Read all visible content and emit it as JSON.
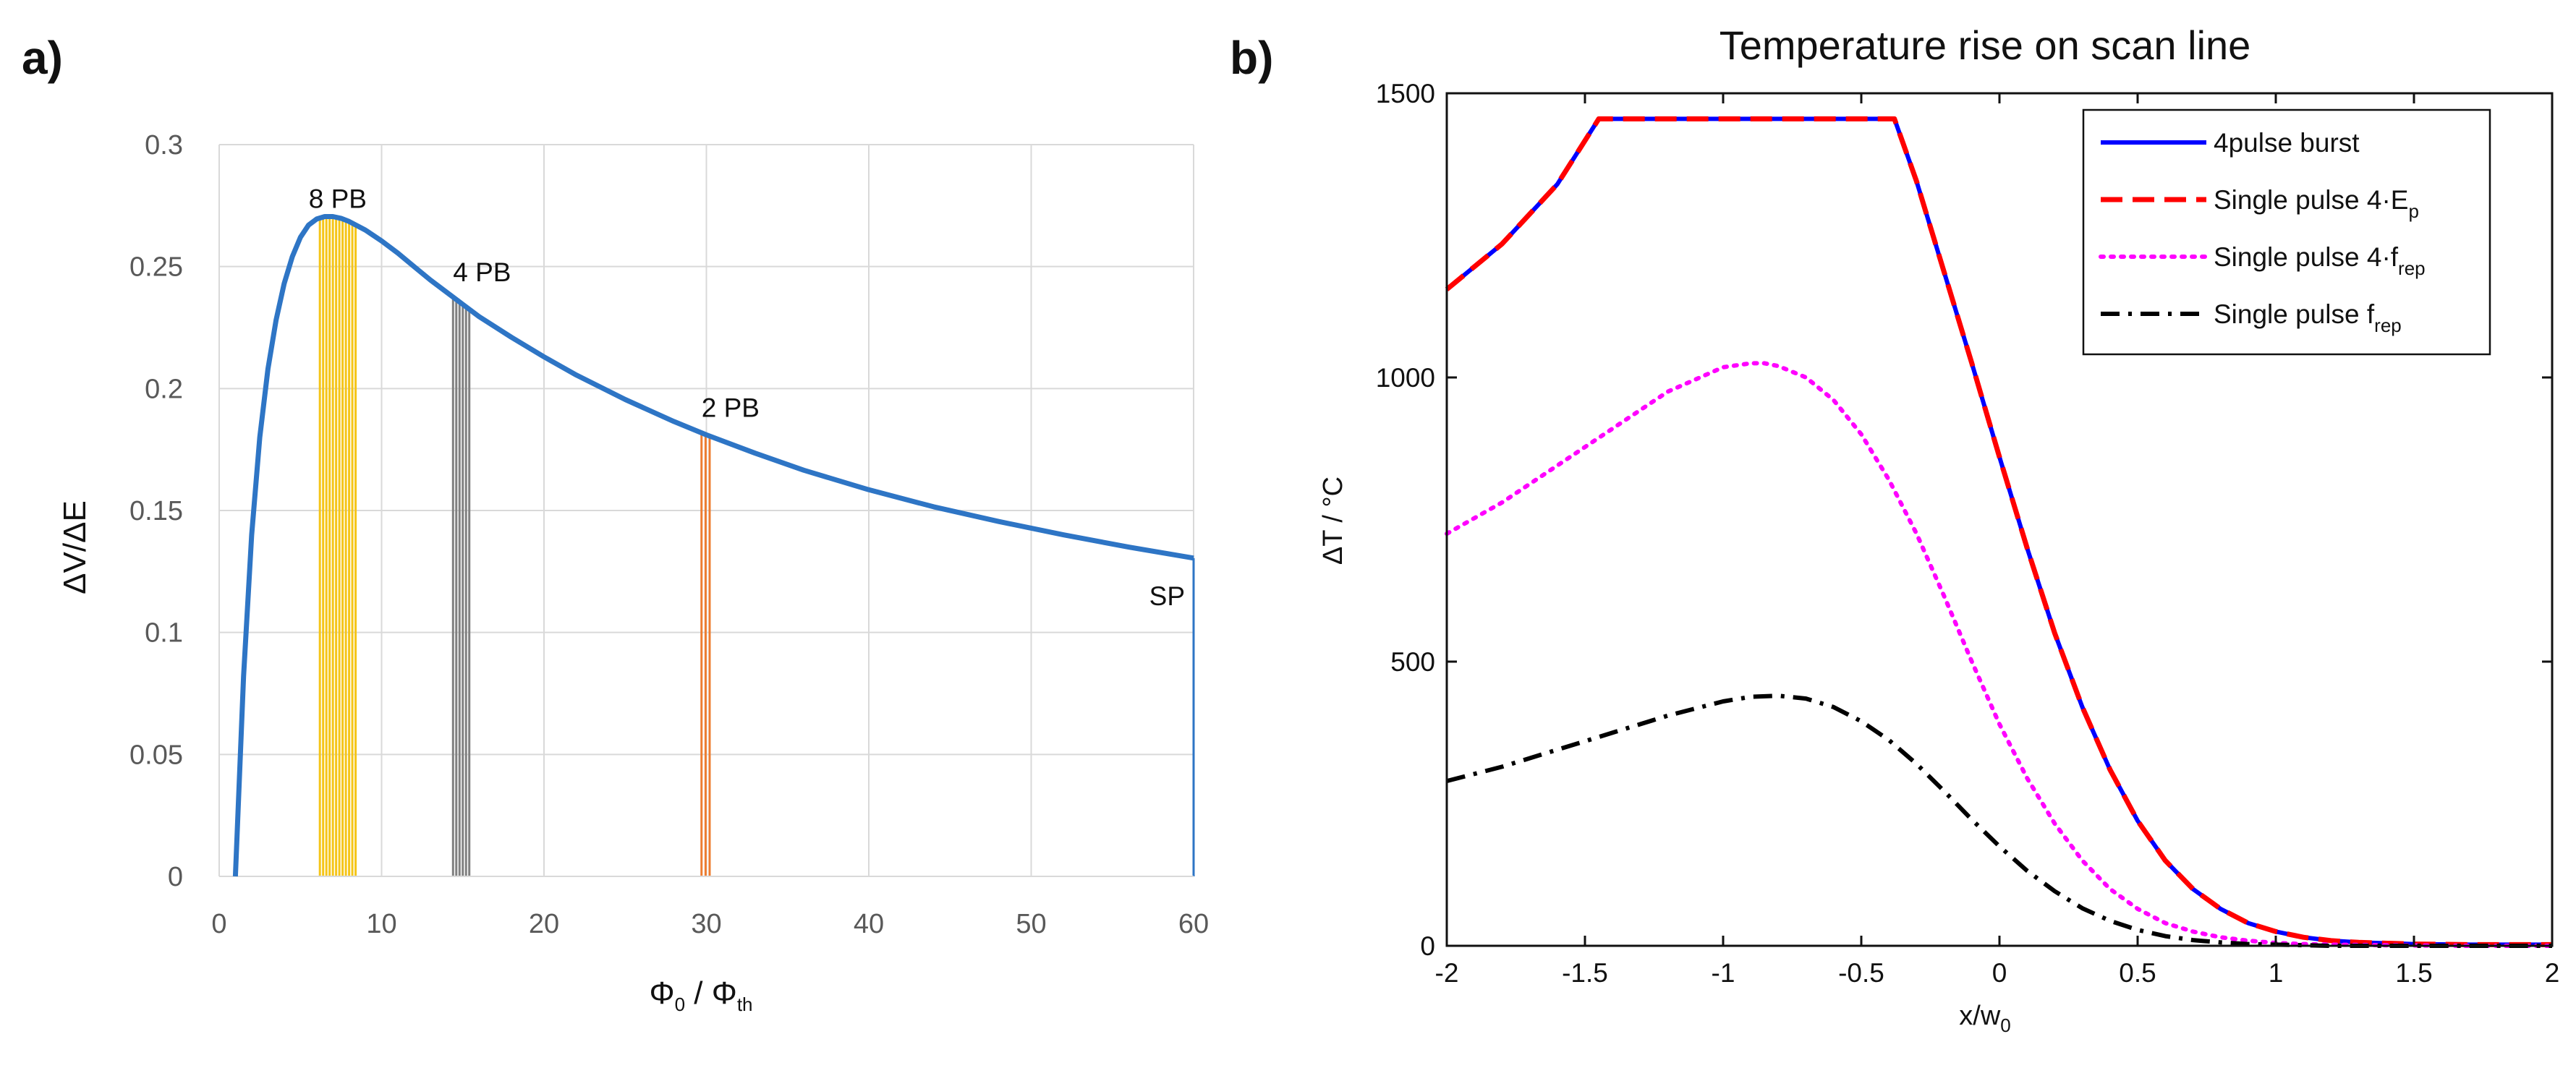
{
  "panel_a_letter": "a)",
  "panel_b_letter": "b)",
  "chart_data": [
    {
      "type": "line",
      "panel": "a",
      "title": "",
      "ylabel": "ΔV/ΔE",
      "xlabel_main": "Φ",
      "xlabel_sub1": "0",
      "xlabel_sep": " / Φ",
      "xlabel_sub2": "th",
      "xlim": [
        0,
        60
      ],
      "ylim": [
        0,
        0.3
      ],
      "xticks": [
        0,
        10,
        20,
        30,
        40,
        50,
        60
      ],
      "xtick_labels": [
        "0",
        "10",
        "20",
        "30",
        "40",
        "50",
        "60"
      ],
      "yticks": [
        0,
        0.05,
        0.1,
        0.15,
        0.2,
        0.25,
        0.3
      ],
      "ytick_labels": [
        "0",
        "0.05",
        "0.1",
        "0.15",
        "0.2",
        "0.25",
        "0.3"
      ],
      "grid": true,
      "curve_color": "#2E75C5",
      "series": [
        {
          "name": "ΔV/ΔE",
          "x": [
            1,
            1.5,
            2,
            2.5,
            3,
            3.5,
            4,
            4.5,
            5,
            5.5,
            6,
            6.5,
            7,
            7.5,
            8,
            9,
            10,
            11,
            12,
            13,
            14,
            15,
            16,
            18,
            20,
            22,
            25,
            28,
            30,
            33,
            36,
            40,
            44,
            48,
            52,
            56,
            60
          ],
          "y": [
            0,
            0.082,
            0.14,
            0.18,
            0.208,
            0.228,
            0.243,
            0.254,
            0.262,
            0.267,
            0.2695,
            0.2705,
            0.2705,
            0.2698,
            0.2685,
            0.265,
            0.2605,
            0.2555,
            0.25,
            0.2445,
            0.2395,
            0.2345,
            0.2295,
            0.221,
            0.213,
            0.2055,
            0.1955,
            0.1865,
            0.181,
            0.1735,
            0.1665,
            0.1585,
            0.1515,
            0.1455,
            0.14,
            0.135,
            0.1305
          ]
        }
      ],
      "bands": [
        {
          "label": "8 PB",
          "x_start": 6.2,
          "x_end": 8.4,
          "lines": 12,
          "color": "#F5C518"
        },
        {
          "label": "4 PB",
          "x_start": 14.4,
          "x_end": 15.4,
          "lines": 6,
          "color": "#808080"
        },
        {
          "label": "2 PB",
          "x_start": 29.7,
          "x_end": 30.2,
          "lines": 3,
          "color": "#ED7D31"
        },
        {
          "label": "SP",
          "x_start": 60,
          "x_end": 60,
          "lines": 1,
          "color": "#2E75C5"
        }
      ]
    },
    {
      "type": "line",
      "panel": "b",
      "title": "Temperature rise on scan line",
      "ylabel": "ΔT / °C",
      "xlabel_main": "x/w",
      "xlabel_sub": "0",
      "xlim": [
        -2,
        2
      ],
      "ylim": [
        0,
        1500
      ],
      "xticks": [
        -2,
        -1.5,
        -1,
        -0.5,
        0,
        0.5,
        1,
        1.5,
        2
      ],
      "xtick_labels": [
        "-2",
        "-1.5",
        "-1",
        "-0.5",
        "0",
        "0.5",
        "1",
        "1.5",
        "2"
      ],
      "yticks": [
        0,
        500,
        1000,
        1500
      ],
      "ytick_labels": [
        "0",
        "500",
        "1000",
        "1500"
      ],
      "grid": false,
      "legend_position": "top-right",
      "series": [
        {
          "name": "4pulse burst",
          "legend_main": "4pulse burst",
          "legend_sub": "",
          "color": "#0000FF",
          "style": "solid",
          "x": [
            -2,
            -1.8,
            -1.6,
            -1.45,
            -0.38,
            -0.3,
            -0.2,
            -0.1,
            0,
            0.1,
            0.2,
            0.3,
            0.4,
            0.5,
            0.6,
            0.7,
            0.8,
            0.9,
            1.0,
            1.1,
            1.2,
            1.3,
            1.5,
            1.7,
            2
          ],
          "y": [
            1155,
            1235,
            1340,
            1455,
            1455,
            1345,
            1185,
            1025,
            860,
            700,
            550,
            420,
            310,
            220,
            150,
            100,
            65,
            40,
            25,
            15,
            9,
            6,
            3,
            2,
            2
          ]
        },
        {
          "name": "Single pulse 4·Ep",
          "legend_main": "Single pulse 4·E",
          "legend_sub": "p",
          "color": "#FF0000",
          "style": "dashed",
          "x": [
            -2,
            -1.8,
            -1.6,
            -1.45,
            -0.38,
            -0.3,
            -0.2,
            -0.1,
            0,
            0.1,
            0.2,
            0.3,
            0.4,
            0.5,
            0.6,
            0.7,
            0.8,
            0.9,
            1.0,
            1.1,
            1.2,
            1.3,
            1.5,
            1.7,
            2
          ],
          "y": [
            1155,
            1235,
            1340,
            1455,
            1455,
            1345,
            1185,
            1025,
            860,
            700,
            550,
            420,
            310,
            220,
            150,
            100,
            65,
            40,
            25,
            15,
            9,
            6,
            3,
            2,
            2
          ]
        },
        {
          "name": "Single pulse 4·frep",
          "legend_main": "Single pulse 4·f",
          "legend_sub": "rep",
          "color": "#FF00FF",
          "style": "dotted",
          "x": [
            -2,
            -1.8,
            -1.6,
            -1.4,
            -1.2,
            -1.0,
            -0.9,
            -0.85,
            -0.8,
            -0.7,
            -0.6,
            -0.5,
            -0.4,
            -0.3,
            -0.2,
            -0.1,
            0,
            0.1,
            0.2,
            0.3,
            0.4,
            0.5,
            0.6,
            0.7,
            0.8,
            0.9,
            1.0,
            1.1,
            1.2,
            1.4,
            1.7,
            2
          ],
          "y": [
            725,
            780,
            845,
            910,
            975,
            1018,
            1025,
            1025,
            1020,
            1000,
            960,
            900,
            820,
            725,
            615,
            500,
            390,
            295,
            215,
            150,
            100,
            65,
            40,
            25,
            15,
            9,
            5,
            3,
            2,
            1,
            0,
            0
          ]
        },
        {
          "name": "Single pulse frep",
          "legend_main": "Single pulse f",
          "legend_sub": "rep",
          "color": "#000000",
          "style": "dashdot",
          "x": [
            -2,
            -1.8,
            -1.6,
            -1.4,
            -1.2,
            -1.0,
            -0.9,
            -0.8,
            -0.7,
            -0.6,
            -0.5,
            -0.4,
            -0.3,
            -0.2,
            -0.1,
            0,
            0.1,
            0.2,
            0.3,
            0.4,
            0.5,
            0.6,
            0.7,
            0.8,
            0.9,
            1.0,
            1.1,
            1.2,
            1.4,
            1.7,
            2
          ],
          "y": [
            290,
            315,
            345,
            375,
            405,
            430,
            438,
            440,
            435,
            420,
            395,
            362,
            320,
            272,
            222,
            175,
            132,
            96,
            66,
            44,
            28,
            17,
            10,
            6,
            3,
            2,
            1,
            0,
            0,
            0,
            0
          ]
        }
      ]
    }
  ]
}
